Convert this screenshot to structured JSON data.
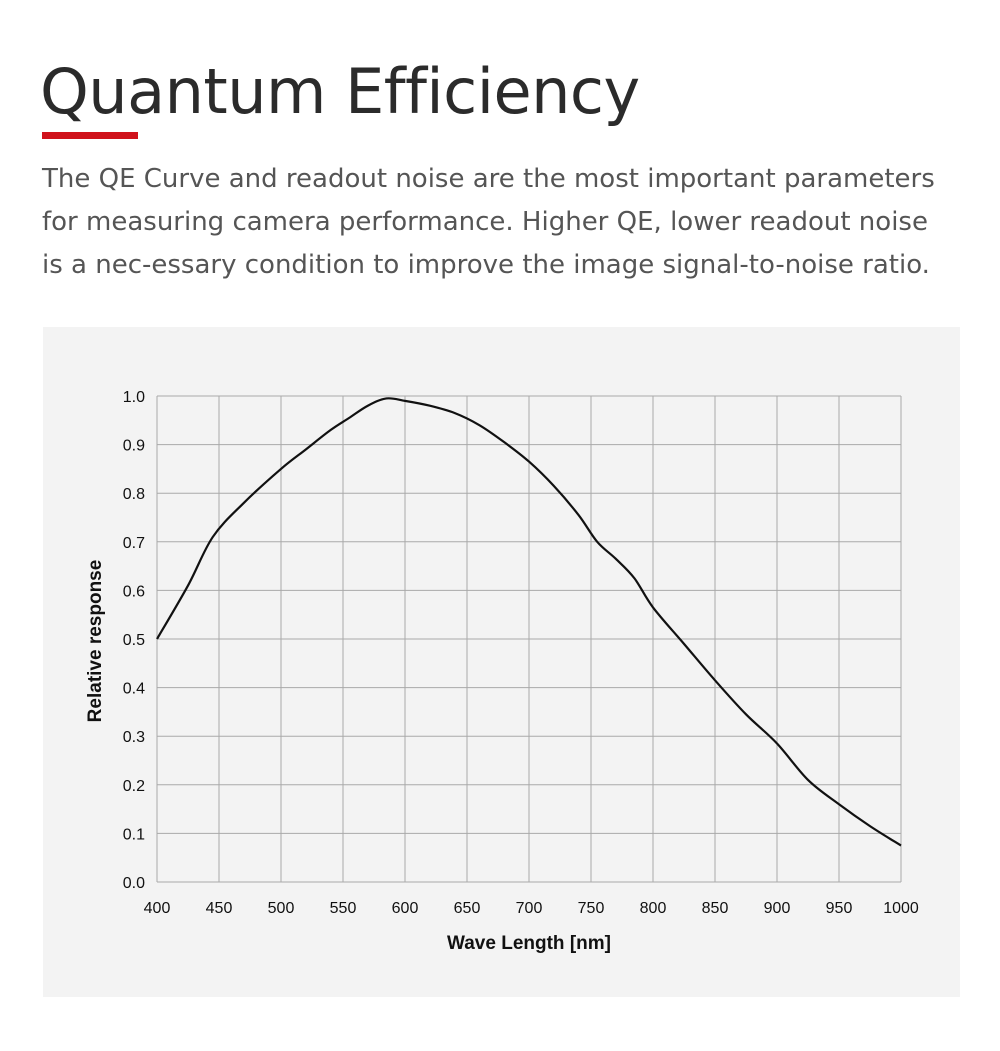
{
  "header": {
    "title": "Quantum Efficiency",
    "description": "The QE Curve and readout noise are the most important parameters for measuring camera performance. Higher QE, lower readout noise is a nec-essary condition to improve the image signal-to-noise ratio."
  },
  "colors": {
    "accent": "#d0121b",
    "panel": "#f3f3f3",
    "grid": "#a9a9a9",
    "line": "#111111"
  },
  "chart_data": {
    "type": "line",
    "xlabel": "Wave Length [nm]",
    "ylabel": "Relative response",
    "xlim": [
      400,
      1000
    ],
    "ylim": [
      0,
      1.0
    ],
    "x_ticks": [
      "400",
      "450",
      "500",
      "550",
      "600",
      "650",
      "700",
      "750",
      "800",
      "850",
      "900",
      "950",
      "1000"
    ],
    "y_ticks": [
      "0.0",
      "0.1",
      "0.2",
      "0.3",
      "0.4",
      "0.5",
      "0.6",
      "0.7",
      "0.8",
      "0.9",
      "1.0"
    ],
    "grid": true,
    "series": [
      {
        "x": [
          400,
          425,
          445,
          470,
          500,
          520,
          540,
          555,
          570,
          585,
          600,
          620,
          640,
          660,
          680,
          700,
          720,
          740,
          755,
          770,
          785,
          800,
          825,
          850,
          875,
          900,
          925,
          950,
          975,
          1000
        ],
        "y": [
          0.5,
          0.61,
          0.71,
          0.78,
          0.85,
          0.89,
          0.93,
          0.955,
          0.98,
          0.995,
          0.99,
          0.98,
          0.965,
          0.94,
          0.905,
          0.865,
          0.815,
          0.755,
          0.7,
          0.665,
          0.625,
          0.565,
          0.49,
          0.415,
          0.345,
          0.285,
          0.21,
          0.16,
          0.115,
          0.075
        ]
      }
    ]
  }
}
